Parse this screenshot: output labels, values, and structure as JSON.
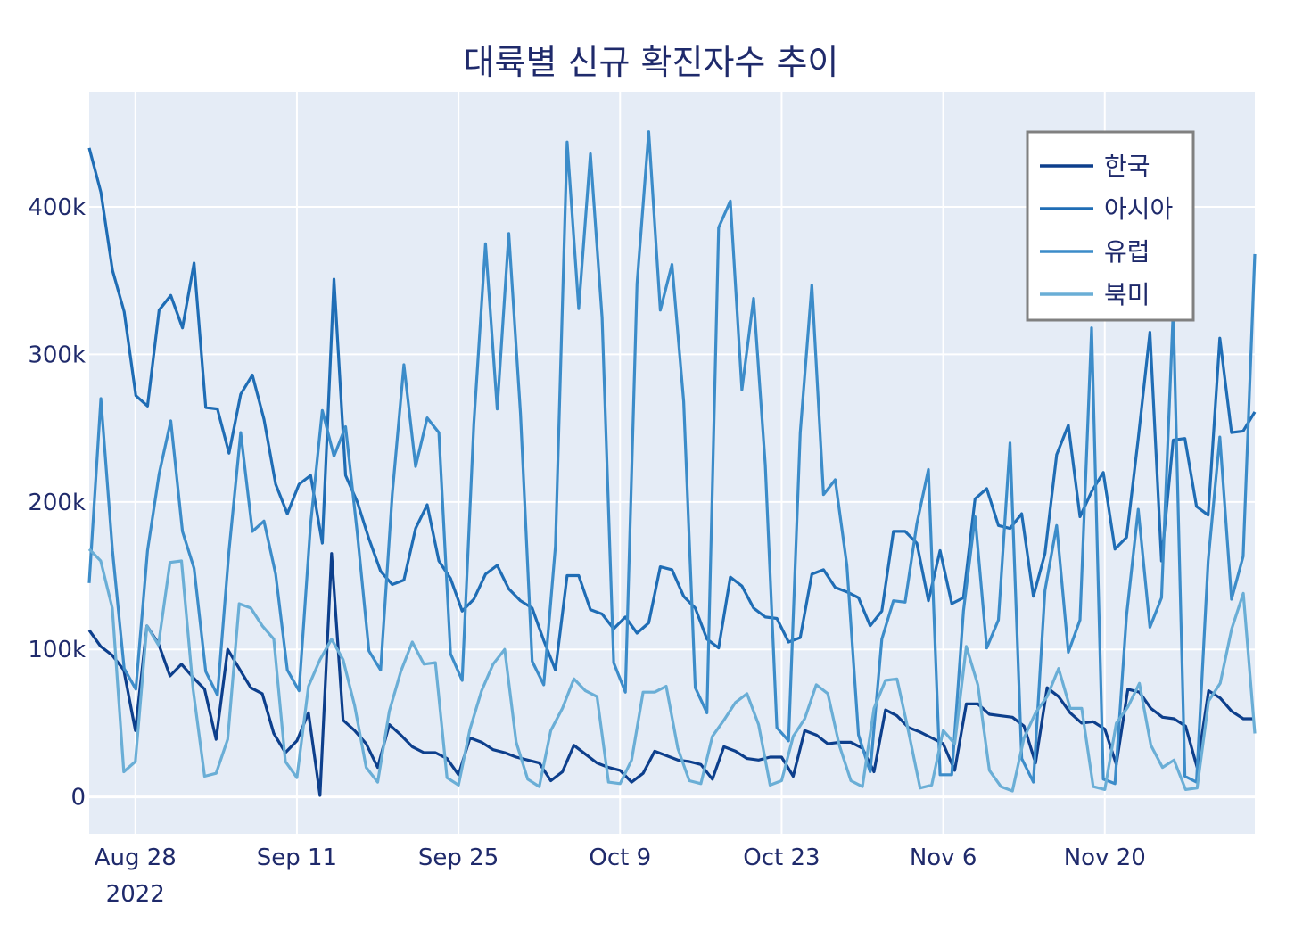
{
  "chart_data": {
    "type": "line",
    "title": "대륙별 신규 확진자수 추이",
    "xlabel": "",
    "ylabel": "",
    "x_start": "2022-08-24",
    "x_end": "2022-12-03",
    "x_ticks": [
      {
        "date": "2022-08-28",
        "label": "Aug 28",
        "sublabel": "2022"
      },
      {
        "date": "2022-09-11",
        "label": "Sep 11",
        "sublabel": ""
      },
      {
        "date": "2022-09-25",
        "label": "Sep 25",
        "sublabel": ""
      },
      {
        "date": "2022-10-09",
        "label": "Oct 9",
        "sublabel": ""
      },
      {
        "date": "2022-10-23",
        "label": "Oct 23",
        "sublabel": ""
      },
      {
        "date": "2022-11-06",
        "label": "Nov 6",
        "sublabel": ""
      },
      {
        "date": "2022-11-20",
        "label": "Nov 20",
        "sublabel": ""
      }
    ],
    "ylim": [
      -25000,
      478000
    ],
    "y_ticks": [
      {
        "value": 0,
        "label": "0"
      },
      {
        "value": 100000,
        "label": "100k"
      },
      {
        "value": 200000,
        "label": "200k"
      },
      {
        "value": 300000,
        "label": "300k"
      },
      {
        "value": 400000,
        "label": "400k"
      }
    ],
    "grid": true,
    "legend_position": "top-right",
    "plot_bg": "#e5ecf6",
    "series": [
      {
        "name": "한국",
        "color": "#0d3f8c",
        "values": [
          113000,
          102000,
          96000,
          86000,
          45000,
          116000,
          104000,
          82000,
          90000,
          81000,
          73000,
          39000,
          100000,
          87000,
          74000,
          70000,
          43000,
          30000,
          38000,
          57000,
          1000,
          165000,
          52000,
          45000,
          36000,
          20000,
          49000,
          42000,
          34000,
          30000,
          30000,
          26000,
          15000,
          40000,
          37000,
          32000,
          30000,
          27000,
          25000,
          23000,
          11000,
          17000,
          35000,
          29000,
          23000,
          20000,
          18000,
          10000,
          16000,
          31000,
          28000,
          25000,
          24000,
          22000,
          12000,
          34000,
          31000,
          26000,
          25000,
          27000,
          27000,
          14000,
          45000,
          42000,
          36000,
          37000,
          37000,
          33000,
          17000,
          59000,
          55000,
          47000,
          44000,
          40000,
          36000,
          18000,
          63000,
          63000,
          56000,
          55000,
          54000,
          48000,
          23000,
          74000,
          68000,
          57000,
          50000,
          51000,
          46000,
          22000,
          73000,
          71000,
          60000,
          54000,
          53000,
          48000,
          20000,
          72000,
          67000,
          58000,
          53000,
          53000
        ]
      },
      {
        "name": "아시아",
        "color": "#1f6db5",
        "values": [
          440000,
          410000,
          357000,
          329000,
          272000,
          265000,
          330000,
          340000,
          318000,
          362000,
          264000,
          263000,
          233000,
          273000,
          286000,
          256000,
          212000,
          192000,
          212000,
          218000,
          172000,
          351000,
          218000,
          200000,
          175000,
          153000,
          144000,
          147000,
          182000,
          198000,
          160000,
          148000,
          126000,
          134000,
          151000,
          157000,
          141000,
          133000,
          128000,
          106000,
          86000,
          150000,
          150000,
          127000,
          124000,
          114000,
          122000,
          111000,
          118000,
          156000,
          154000,
          136000,
          128000,
          107000,
          101000,
          149000,
          143000,
          128000,
          122000,
          121000,
          105000,
          108000,
          151000,
          154000,
          142000,
          139000,
          135000,
          116000,
          126000,
          180000,
          180000,
          172000,
          133000,
          167000,
          131000,
          135000,
          202000,
          209000,
          184000,
          182000,
          192000,
          136000,
          165000,
          232000,
          252000,
          190000,
          207000,
          220000,
          168000,
          176000,
          243000,
          315000,
          160000,
          242000,
          243000,
          197000,
          191000,
          311000,
          247000,
          248000,
          261000
        ]
      },
      {
        "name": "유럽",
        "color": "#3c8cc9",
        "values": [
          145000,
          270000,
          167000,
          87000,
          73000,
          167000,
          219000,
          255000,
          180000,
          155000,
          85000,
          69000,
          167000,
          247000,
          180000,
          187000,
          151000,
          86000,
          72000,
          185000,
          262000,
          231000,
          251000,
          179000,
          99000,
          86000,
          205000,
          293000,
          224000,
          257000,
          247000,
          97000,
          79000,
          253000,
          375000,
          263000,
          382000,
          260000,
          92000,
          76000,
          170000,
          444000,
          331000,
          436000,
          325000,
          91000,
          71000,
          348000,
          451000,
          330000,
          361000,
          268000,
          74000,
          57000,
          386000,
          404000,
          276000,
          338000,
          225000,
          47000,
          38000,
          247000,
          347000,
          205000,
          215000,
          157000,
          42000,
          17000,
          107000,
          133000,
          132000,
          185000,
          222000,
          15000,
          15000,
          126000,
          190000,
          101000,
          120000,
          240000,
          26000,
          10000,
          140000,
          184000,
          98000,
          120000,
          318000,
          12000,
          9000,
          123000,
          195000,
          115000,
          135000,
          330000,
          14000,
          10000,
          160000,
          244000,
          134000,
          163000,
          368000
        ]
      },
      {
        "name": "북미",
        "color": "#6aaed6",
        "values": [
          168000,
          160000,
          128000,
          17000,
          24000,
          116000,
          103000,
          159000,
          160000,
          73000,
          14000,
          16000,
          39000,
          131000,
          128000,
          116000,
          107000,
          24000,
          13000,
          75000,
          93000,
          107000,
          93000,
          62000,
          20000,
          10000,
          58000,
          85000,
          105000,
          90000,
          91000,
          13000,
          8000,
          46000,
          72000,
          90000,
          100000,
          37000,
          12000,
          7000,
          45000,
          60000,
          80000,
          72000,
          68000,
          10000,
          9000,
          25000,
          71000,
          71000,
          75000,
          33000,
          11000,
          9000,
          41000,
          52000,
          64000,
          70000,
          49000,
          8000,
          11000,
          41000,
          53000,
          76000,
          70000,
          35000,
          11000,
          7000,
          60000,
          79000,
          80000,
          44000,
          6000,
          8000,
          45000,
          36000,
          102000,
          76000,
          18000,
          7000,
          4000,
          40000,
          57000,
          68000,
          87000,
          60000,
          60000,
          7000,
          5000,
          50000,
          61000,
          77000,
          35000,
          20000,
          25000,
          5000,
          6000,
          65000,
          77000,
          114000,
          138000,
          43000
        ]
      }
    ]
  }
}
